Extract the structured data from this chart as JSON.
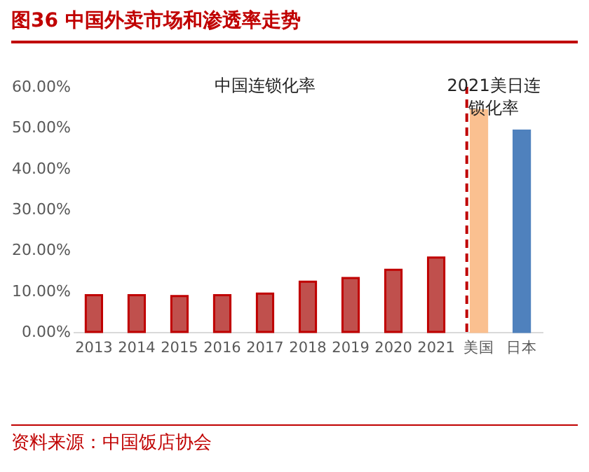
{
  "chart_data": {
    "type": "bar",
    "title": "图36  中国外卖市场和渗透率走势",
    "categories": [
      "2013",
      "2014",
      "2015",
      "2016",
      "2017",
      "2018",
      "2019",
      "2020",
      "2021",
      "美国",
      "日本"
    ],
    "values": [
      9.0,
      9.0,
      8.8,
      9.0,
      9.4,
      12.3,
      13.2,
      15.2,
      18.2,
      54.3,
      49.3
    ],
    "colors": [
      "#c0504d",
      "#c0504d",
      "#c0504d",
      "#c0504d",
      "#c0504d",
      "#c0504d",
      "#c0504d",
      "#c0504d",
      "#c0504d",
      "#fac090",
      "#4f81bd"
    ],
    "ylim": [
      0,
      60
    ],
    "yticks": [
      {
        "value": 0,
        "label": "0.00%"
      },
      {
        "value": 10,
        "label": "10.00%"
      },
      {
        "value": 20,
        "label": "20.00%"
      },
      {
        "value": 30,
        "label": "30.00%"
      },
      {
        "value": 40,
        "label": "40.00%"
      },
      {
        "value": 50,
        "label": "50.00%"
      },
      {
        "value": 60,
        "label": "60.00%"
      }
    ],
    "ref_lines": [
      {
        "axis": "x",
        "value": "美国",
        "color": "#c00000",
        "line_style": "dashed"
      }
    ],
    "annotations": [
      "中国连锁化率",
      "2021美日连锁化率",
      "资料来源：中国饭店协会"
    ],
    "grid": false,
    "legend": false
  }
}
